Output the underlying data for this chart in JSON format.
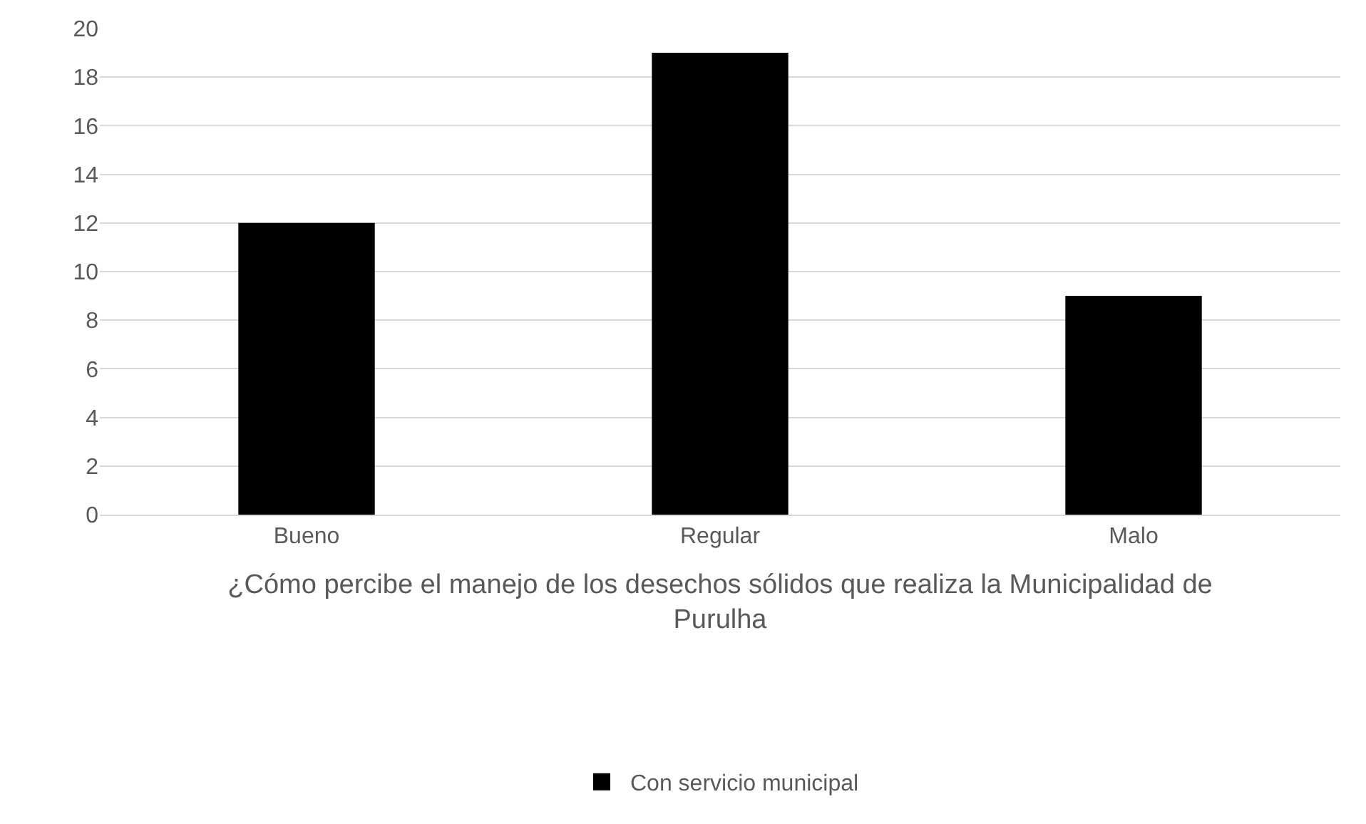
{
  "chart_data": {
    "type": "bar",
    "categories": [
      "Bueno",
      "Regular",
      "Malo"
    ],
    "series": [
      {
        "name": "Con servicio municipal",
        "color": "#000000",
        "values": [
          12,
          19,
          9
        ]
      }
    ],
    "xlabel": "¿Cómo percibe el manejo de los desechos sólidos que realiza la Municipalidad de Purulha",
    "ylim": [
      0,
      20
    ],
    "yticks": [
      0,
      2,
      4,
      6,
      8,
      10,
      12,
      14,
      16,
      18,
      20
    ],
    "grid": "y",
    "legend": "bottom"
  }
}
